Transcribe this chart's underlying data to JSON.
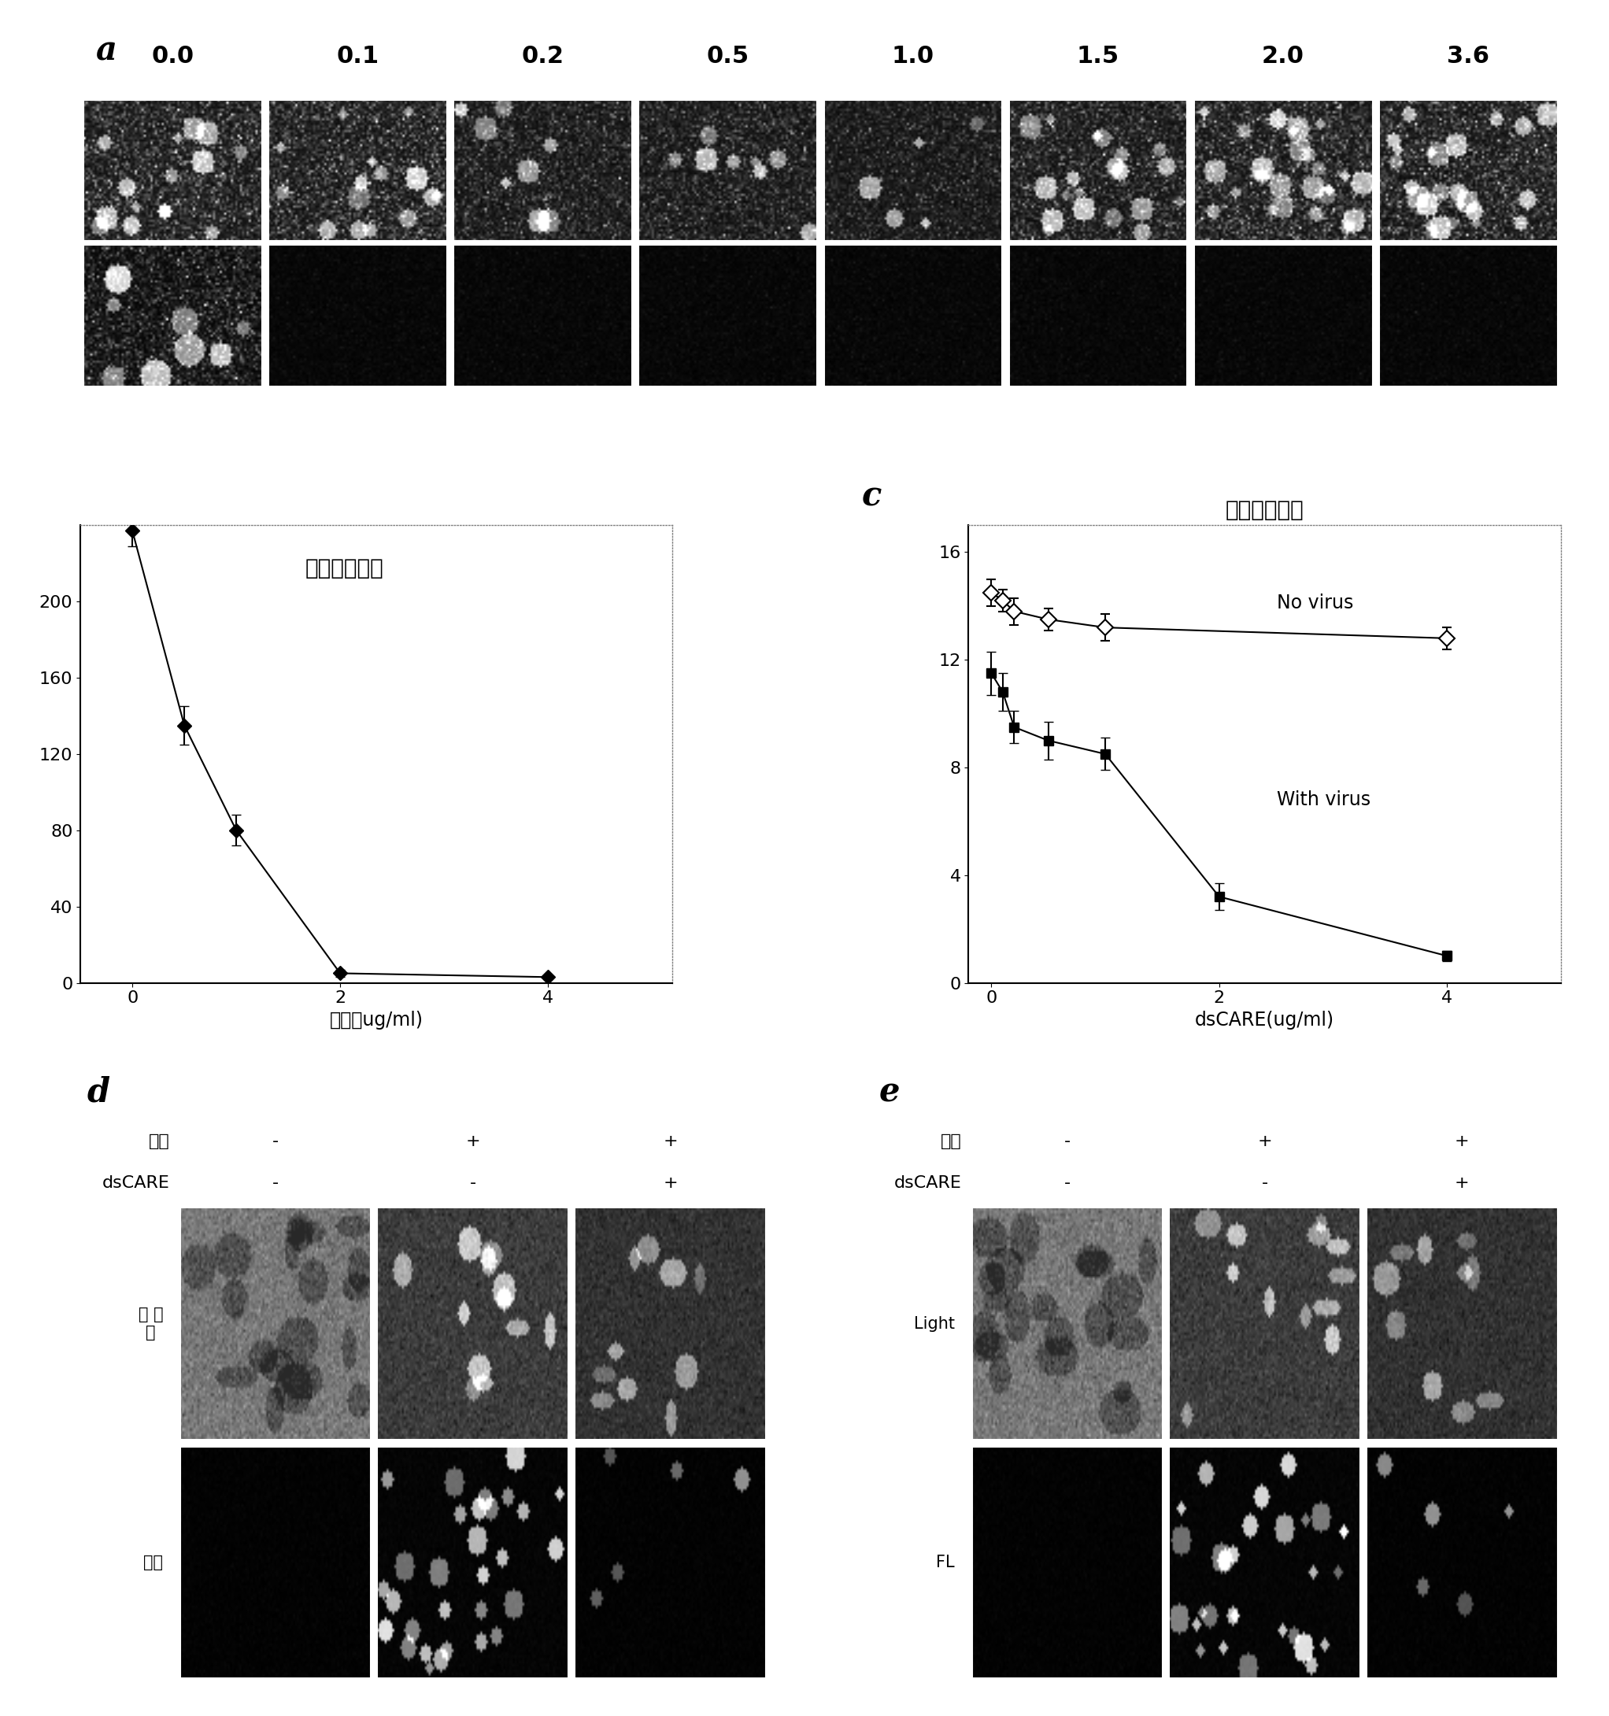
{
  "panel_a_labels": [
    "0.0",
    "0.1",
    "0.2",
    "0.5",
    "1.0",
    "1.5",
    "2.0",
    "3.6"
  ],
  "panel_a_rows": 2,
  "panel_a_cols": 8,
  "panel_b_title": "相对细胞密度",
  "panel_b_xlabel": "计量（ug/ml)",
  "panel_b_yticks": [
    0,
    40,
    80,
    120,
    160,
    200
  ],
  "panel_b_xlim": [
    -0.5,
    5.2
  ],
  "panel_b_ylim": [
    0,
    240
  ],
  "panel_b_x": [
    0,
    0.5,
    1.0,
    2.0,
    4.0
  ],
  "panel_b_y": [
    237,
    135,
    80,
    5,
    3
  ],
  "panel_b_yerr": [
    8,
    10,
    8,
    2,
    1
  ],
  "panel_c_title": "相对细胞密度",
  "panel_c_xlabel": "dsCARE(ug/ml)",
  "panel_c_yticks": [
    0,
    4,
    8,
    12,
    16
  ],
  "panel_c_xlim": [
    -0.2,
    5.0
  ],
  "panel_c_ylim": [
    0,
    17
  ],
  "panel_c_no_virus_x": [
    0,
    0.1,
    0.2,
    0.5,
    1.0,
    4.0
  ],
  "panel_c_no_virus_y": [
    14.5,
    14.2,
    13.8,
    13.5,
    13.2,
    12.8
  ],
  "panel_c_no_virus_yerr": [
    0.5,
    0.4,
    0.5,
    0.4,
    0.5,
    0.4
  ],
  "panel_c_with_virus_x": [
    0,
    0.1,
    0.2,
    0.5,
    1.0,
    2.0,
    4.0
  ],
  "panel_c_with_virus_y": [
    11.5,
    10.8,
    9.5,
    9.0,
    8.5,
    3.2,
    1.0
  ],
  "panel_c_with_virus_yerr": [
    0.8,
    0.7,
    0.6,
    0.7,
    0.6,
    0.5,
    0.2
  ],
  "panel_c_legend_no_virus": "No virus",
  "panel_c_legend_with_virus": "With virus",
  "panel_d_virus_label": "病毒",
  "panel_d_dscare_label": "dsCARE",
  "panel_d_virus_signs": [
    "-",
    "+",
    "+"
  ],
  "panel_d_dscare_signs": [
    "-",
    "-",
    "+"
  ],
  "panel_d_row_label_1": "可 见\n光",
  "panel_d_row_label_2": "荧光",
  "panel_e_virus_label": "病毒",
  "panel_e_dscare_label": "dsCARE",
  "panel_e_virus_signs": [
    "-",
    "+",
    "+"
  ],
  "panel_e_dscare_signs": [
    "-",
    "-",
    "+"
  ],
  "panel_e_row_label_1": "Light",
  "panel_e_row_label_2": "FL",
  "white": "#ffffff",
  "black": "#000000",
  "dark_gray": "#333333",
  "mid_gray": "#888888",
  "light_gray": "#cccccc"
}
